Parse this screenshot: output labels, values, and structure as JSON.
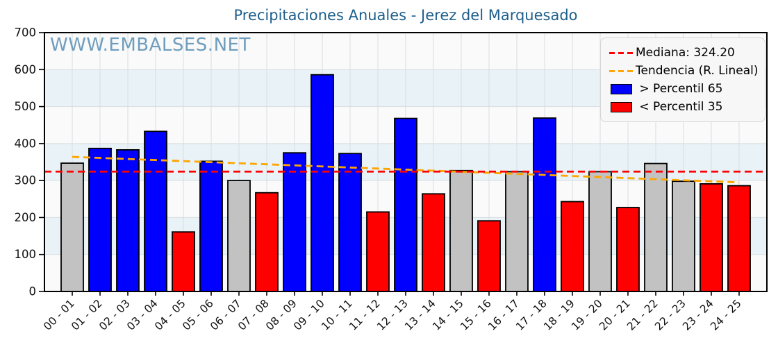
{
  "title": "Precipitaciones Anuales - Jerez del Marquesado",
  "watermark": "WWW.EMBALSES.NET",
  "colors": {
    "title": "#1e5f8c",
    "watermark": "#6f9dbd",
    "above": "#0000ff",
    "below": "#ff0000",
    "mid": "#c2c2c2",
    "bar_edge": "#000000",
    "median_line": "#ff0000",
    "trend_line": "#ffa500",
    "plot_bg": "#fafafa",
    "band": "#e8f2f7",
    "grid": "#d8dde0",
    "spine": "#000000",
    "tick_text": "#111111",
    "legend_bg": "#f7f7f7"
  },
  "legend": {
    "items": [
      {
        "id": "median",
        "label": "Mediana: 324.20",
        "swatch": "dashed-line",
        "color": "#ff0000"
      },
      {
        "id": "trend",
        "label": "Tendencia (R. Lineal)",
        "swatch": "dashed-line",
        "color": "#ffa500"
      },
      {
        "id": "above",
        "label": " > Percentil 65",
        "swatch": "box",
        "color": "#0000ff"
      },
      {
        "id": "below",
        "label": " < Percentil 35",
        "swatch": "box",
        "color": "#ff0000"
      }
    ]
  },
  "chart_data": {
    "type": "bar",
    "title": "Precipitaciones Anuales - Jerez del Marquesado",
    "categories": [
      "00 - 01",
      "01 - 02",
      "02 - 03",
      "03 - 04",
      "04 - 05",
      "05 - 06",
      "06 - 07",
      "07 - 08",
      "08 - 09",
      "09 - 10",
      "10 - 11",
      "11 - 12",
      "12 - 13",
      "13 - 14",
      "14 - 15",
      "15 - 16",
      "16 - 17",
      "17 - 18",
      "18 - 19",
      "19 - 20",
      "20 - 21",
      "21 - 22",
      "22 - 23",
      "23 - 24",
      "24 - 25"
    ],
    "values": [
      347,
      387,
      383,
      433,
      161,
      352,
      300,
      267,
      375,
      586,
      373,
      215,
      468,
      264,
      327,
      191,
      324,
      469,
      243,
      324,
      227,
      346,
      298,
      291,
      286
    ],
    "classes": [
      "mid",
      "above",
      "above",
      "above",
      "below",
      "above",
      "mid",
      "below",
      "above",
      "above",
      "above",
      "below",
      "above",
      "below",
      "mid",
      "below",
      "mid",
      "above",
      "below",
      "mid",
      "below",
      "mid",
      "mid",
      "below",
      "below"
    ],
    "median": 324.2,
    "trend_line": {
      "start": 364,
      "end": 295
    },
    "ylim": [
      0,
      700
    ],
    "yticks": [
      0,
      100,
      200,
      300,
      400,
      500,
      600,
      700
    ],
    "bands": [
      [
        100,
        200
      ],
      [
        300,
        400
      ],
      [
        500,
        600
      ]
    ],
    "grid": true,
    "legend_position": "upper right"
  }
}
